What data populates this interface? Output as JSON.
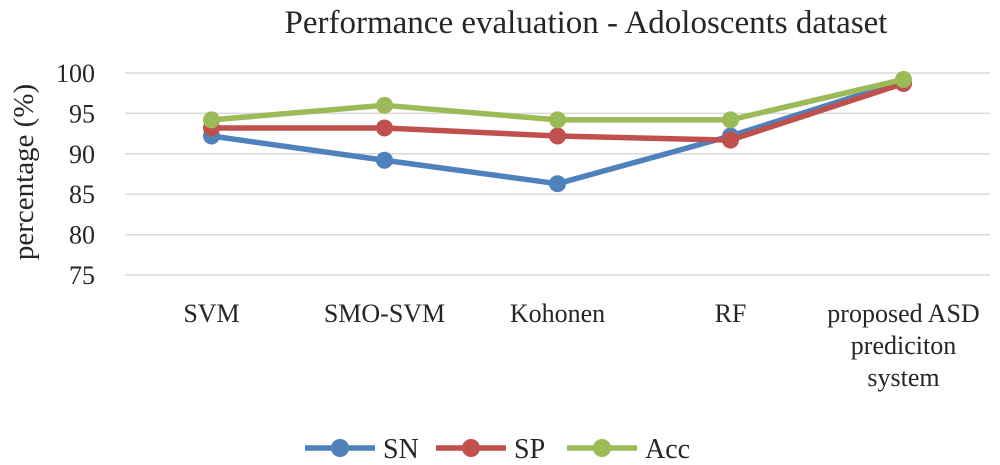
{
  "chart_data": {
    "type": "line",
    "title": "Performance evaluation - Adoloscents dataset",
    "xlabel": "",
    "ylabel": "percentage (%)",
    "categories": [
      [
        "SVM"
      ],
      [
        "SMO-SVM"
      ],
      [
        "Kohonen"
      ],
      [
        "RF"
      ],
      [
        "proposed ASD",
        "prediciton",
        "system"
      ]
    ],
    "yticks": [
      75,
      80,
      85,
      90,
      95,
      100
    ],
    "ylim": [
      75,
      100
    ],
    "grid": true,
    "legend_position": "bottom",
    "series": [
      {
        "name": "SN",
        "color": "#4f81bd",
        "values": [
          92.2,
          89.2,
          86.3,
          92.2,
          99.0
        ]
      },
      {
        "name": "SP",
        "color": "#c0504d",
        "values": [
          93.2,
          93.2,
          92.2,
          91.7,
          98.7
        ]
      },
      {
        "name": "Acc",
        "color": "#9bbb59",
        "values": [
          94.2,
          96.0,
          94.2,
          94.2,
          99.2
        ]
      }
    ]
  }
}
